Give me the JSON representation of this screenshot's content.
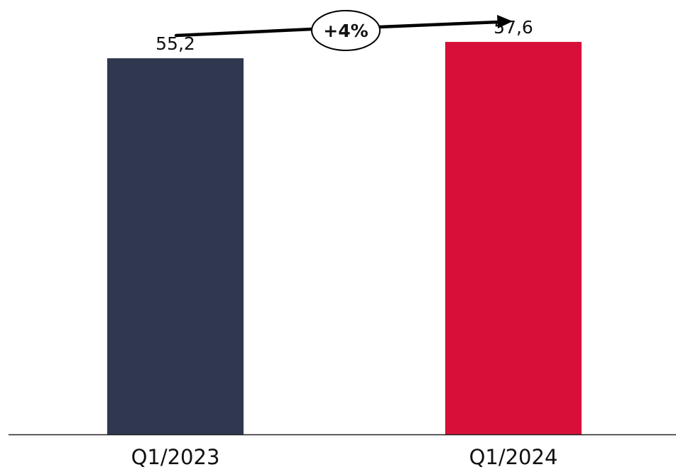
{
  "chart_data": {
    "type": "bar",
    "categories": [
      "Q1/2023",
      "Q1/2024"
    ],
    "values": [
      55.2,
      57.6
    ],
    "value_labels": [
      "55,2",
      "57,6"
    ],
    "bar_colors": [
      "#30384f",
      "#d81039"
    ],
    "ylim": [
      0,
      60
    ],
    "grid": false,
    "legend": "none",
    "title": "",
    "xlabel": "",
    "ylabel": "",
    "annotation": {
      "text": "+4%",
      "type": "growth-arrow",
      "from": "Q1/2023",
      "to": "Q1/2024"
    }
  }
}
